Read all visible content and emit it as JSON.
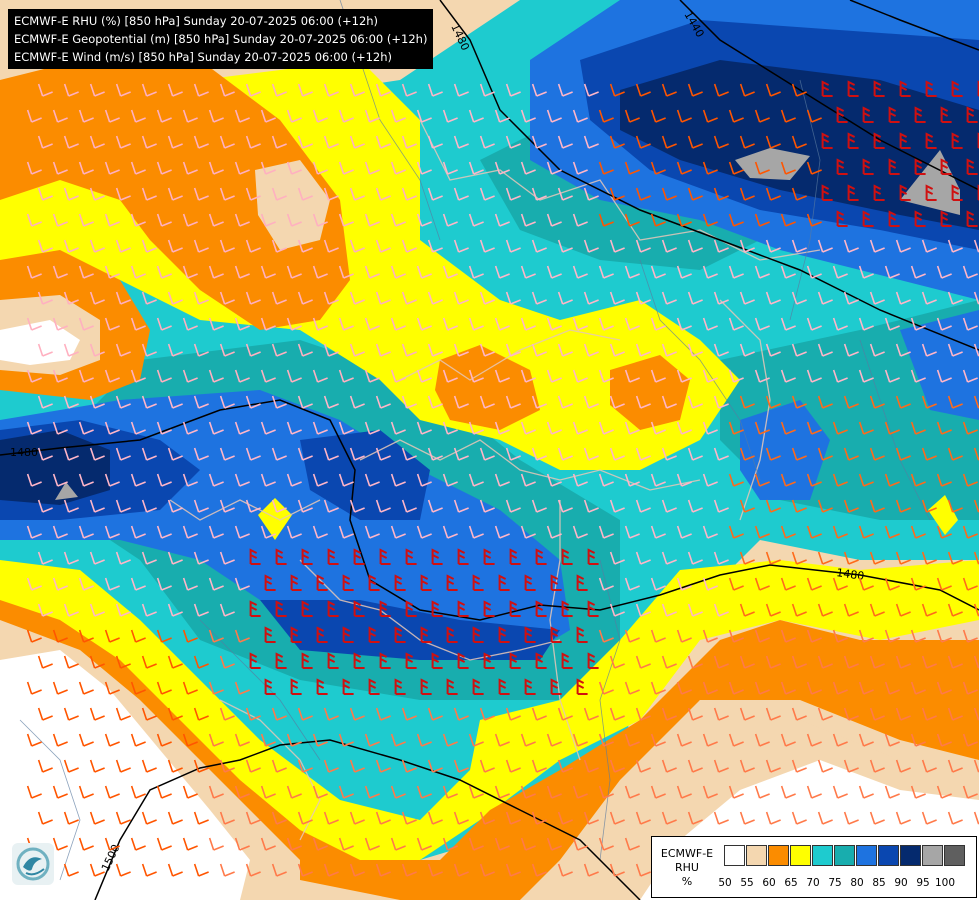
{
  "title_lines": [
    "ECMWF-E RHU (%) [850 hPa] Sunday 20-07-2025 06:00 (+12h)",
    "ECMWF-E Geopotential (m) [850 hPa] Sunday 20-07-2025 06:00 (+12h)",
    "ECMWF-E Wind (m/s) [850 hPa] Sunday 20-07-2025 06:00 (+12h)"
  ],
  "legend": {
    "name_line1": "ECMWF-E",
    "name_line2": "RHU",
    "unit": "%",
    "ticks": [
      "50",
      "55",
      "60",
      "65",
      "70",
      "75",
      "80",
      "85",
      "90",
      "95",
      "100"
    ],
    "colors": [
      "#ffffff",
      "#f4d7b0",
      "#fb8c00",
      "#ffff00",
      "#1ecbcf",
      "#18adae",
      "#1e73e0",
      "#0a47b0",
      "#052a6e",
      "#a6a6a6",
      "#5f5f5f"
    ]
  },
  "contour_labels": [
    "1480",
    "1440",
    "1480",
    "1480",
    "1500"
  ],
  "colors": {
    "white": "#ffffff",
    "tan": "#f4d7b0",
    "orange": "#fb8c00",
    "yellow": "#ffff00",
    "cyan": "#1ecbcf",
    "teal": "#18adae",
    "blue": "#1e73e0",
    "dark_blue": "#0a47b0",
    "navy": "#052a6e",
    "grey": "#a6a6a6",
    "dark_grey": "#5f5f5f"
  },
  "icons": {
    "logo": "ecmwf-swirl-logo",
    "wind_barb": "wind-barb-icon"
  }
}
